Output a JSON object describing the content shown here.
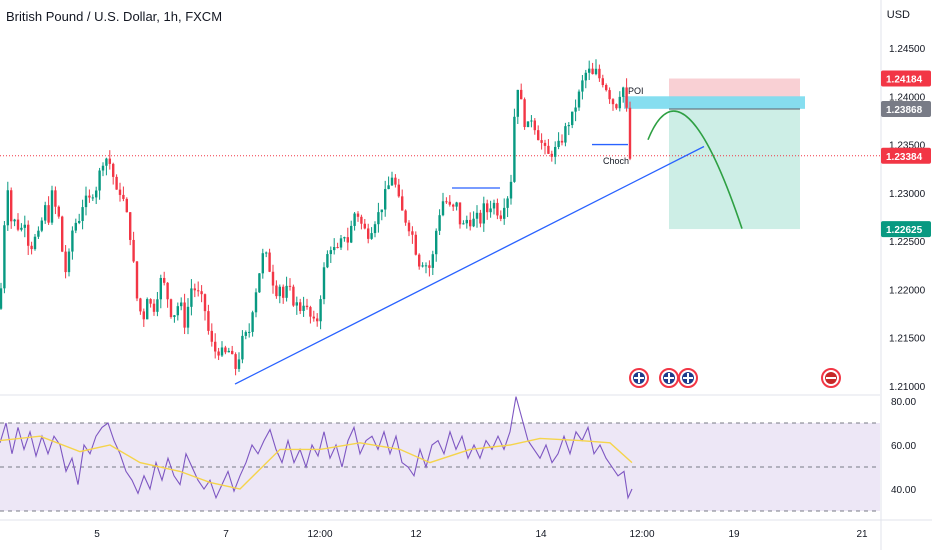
{
  "header": {
    "symbol_title": "British Pound / U.S. Dollar, 1h, FXCM",
    "currency": "USD"
  },
  "colors": {
    "up": "#089981",
    "down": "#f23645",
    "trendline": "#2962ff",
    "rsi_line": "#7e57c2",
    "rsi_ma": "#f5d44b",
    "rsi_band": "#ede7f6",
    "projection": "#2ea043",
    "poi": "#7fdcef",
    "stop_zone": "#f9d0d4",
    "target_zone": "#cdeee6"
  },
  "chart_data": [
    {
      "type": "candlestick",
      "title": "British Pound / U.S. Dollar, 1h, FXCM",
      "ylabel": "USD",
      "ylim": [
        1.2085,
        1.2505
      ],
      "y_ticks": [
        "1.24500",
        "1.24000",
        "1.23500",
        "1.23000",
        "1.22500",
        "1.22000",
        "1.21500",
        "1.21000"
      ],
      "x_ticks": [
        "5",
        "7",
        "12:00",
        "12",
        "14",
        "12:00",
        "19",
        "21"
      ],
      "price_labels": [
        {
          "label": "1.24184",
          "value": 1.24184,
          "color": "#f23645"
        },
        {
          "label": "1.23868",
          "value": 1.23868,
          "color": "#787b86"
        },
        {
          "label": "1.23384",
          "value": 1.23384,
          "color": "#f23645"
        },
        {
          "label": "1.22625",
          "value": 1.22625,
          "color": "#089981"
        }
      ],
      "current_price": 1.23384,
      "close_path": [
        [
          0,
          1.218
        ],
        [
          4,
          1.2265
        ],
        [
          8,
          1.231
        ],
        [
          12,
          1.2262
        ],
        [
          16,
          1.2275
        ],
        [
          20,
          1.2255
        ],
        [
          24,
          1.2278
        ],
        [
          28,
          1.225
        ],
        [
          32,
          1.2245
        ],
        [
          36,
          1.2255
        ],
        [
          40,
          1.2255
        ],
        [
          44,
          1.229
        ],
        [
          48,
          1.227
        ],
        [
          52,
          1.2298
        ],
        [
          56,
          1.2282
        ],
        [
          60,
          1.227
        ],
        [
          64,
          1.2215
        ],
        [
          68,
          1.2225
        ],
        [
          72,
          1.226
        ],
        [
          76,
          1.227
        ],
        [
          80,
          1.2275
        ],
        [
          84,
          1.2295
        ],
        [
          88,
          1.2288
        ],
        [
          92,
          1.23
        ],
        [
          96,
          1.2305
        ],
        [
          100,
          1.2322
        ],
        [
          104,
          1.2338
        ],
        [
          108,
          1.2335
        ],
        [
          112,
          1.2325
        ],
        [
          116,
          1.2298
        ],
        [
          120,
          1.2302
        ],
        [
          124,
          1.229
        ],
        [
          128,
          1.227
        ],
        [
          132,
          1.2245
        ],
        [
          136,
          1.2195
        ],
        [
          140,
          1.2178
        ],
        [
          144,
          1.2172
        ],
        [
          148,
          1.22
        ],
        [
          152,
          1.2175
        ],
        [
          156,
          1.2188
        ],
        [
          160,
          1.221
        ],
        [
          164,
          1.2205
        ],
        [
          168,
          1.219
        ],
        [
          172,
          1.2172
        ],
        [
          176,
          1.2178
        ],
        [
          180,
          1.219
        ],
        [
          184,
          1.2162
        ],
        [
          188,
          1.2182
        ],
        [
          192,
          1.2205
        ],
        [
          196,
          1.2198
        ],
        [
          200,
          1.2192
        ],
        [
          204,
          1.2185
        ],
        [
          208,
          1.2158
        ],
        [
          212,
          1.2142
        ],
        [
          216,
          1.2135
        ],
        [
          220,
          1.2138
        ],
        [
          224,
          1.213
        ],
        [
          228,
          1.2138
        ],
        [
          232,
          1.2128
        ],
        [
          236,
          1.2118
        ],
        [
          240,
          1.2135
        ],
        [
          244,
          1.2155
        ],
        [
          248,
          1.2148
        ],
        [
          252,
          1.2178
        ],
        [
          256,
          1.22
        ],
        [
          260,
          1.2222
        ],
        [
          264,
          1.224
        ],
        [
          268,
          1.2228
        ],
        [
          272,
          1.2212
        ],
        [
          276,
          1.2198
        ],
        [
          280,
          1.2205
        ],
        [
          284,
          1.2188
        ],
        [
          288,
          1.2205
        ],
        [
          292,
          1.219
        ],
        [
          296,
          1.2185
        ],
        [
          300,
          1.218
        ],
        [
          304,
          1.2188
        ],
        [
          308,
          1.2175
        ],
        [
          312,
          1.2168
        ],
        [
          316,
          1.216
        ],
        [
          320,
          1.219
        ],
        [
          324,
          1.222
        ],
        [
          328,
          1.2238
        ],
        [
          332,
          1.2248
        ],
        [
          336,
          1.2235
        ],
        [
          340,
          1.2245
        ],
        [
          344,
          1.2258
        ],
        [
          348,
          1.225
        ],
        [
          352,
          1.2268
        ],
        [
          356,
          1.2285
        ],
        [
          360,
          1.227
        ],
        [
          364,
          1.2262
        ],
        [
          368,
          1.2258
        ],
        [
          372,
          1.2265
        ],
        [
          376,
          1.2275
        ],
        [
          380,
          1.228
        ],
        [
          384,
          1.2295
        ],
        [
          388,
          1.2305
        ],
        [
          392,
          1.2318
        ],
        [
          396,
          1.2305
        ],
        [
          400,
          1.2285
        ],
        [
          404,
          1.2275
        ],
        [
          408,
          1.2268
        ],
        [
          412,
          1.2258
        ],
        [
          416,
          1.224
        ],
        [
          420,
          1.2225
        ],
        [
          424,
          1.2232
        ],
        [
          428,
          1.222
        ],
        [
          432,
          1.2228
        ],
        [
          436,
          1.226
        ],
        [
          440,
          1.2282
        ],
        [
          444,
          1.2295
        ],
        [
          448,
          1.2288
        ],
        [
          452,
          1.228
        ],
        [
          456,
          1.229
        ],
        [
          460,
          1.227
        ],
        [
          464,
          1.2265
        ],
        [
          468,
          1.2275
        ],
        [
          472,
          1.2268
        ],
        [
          476,
          1.2275
        ],
        [
          480,
          1.227
        ],
        [
          484,
          1.2285
        ],
        [
          488,
          1.228
        ],
        [
          492,
          1.2292
        ],
        [
          496,
          1.2285
        ],
        [
          500,
          1.2275
        ],
        [
          504,
          1.229
        ],
        [
          508,
          1.2298
        ],
        [
          512,
          1.232
        ],
        [
          516,
          1.242
        ],
        [
          520,
          1.24
        ],
        [
          524,
          1.2375
        ],
        [
          528,
          1.2368
        ],
        [
          532,
          1.238
        ],
        [
          536,
          1.2365
        ],
        [
          540,
          1.2355
        ],
        [
          544,
          1.2345
        ],
        [
          548,
          1.2338
        ],
        [
          552,
          1.2342
        ],
        [
          556,
          1.2345
        ],
        [
          560,
          1.235
        ],
        [
          564,
          1.2362
        ],
        [
          568,
          1.2372
        ],
        [
          572,
          1.2378
        ],
        [
          576,
          1.2392
        ],
        [
          580,
          1.2405
        ],
        [
          584,
          1.242
        ],
        [
          588,
          1.2428
        ],
        [
          592,
          1.242
        ],
        [
          596,
          1.2425
        ],
        [
          600,
          1.2418
        ],
        [
          604,
          1.2415
        ],
        [
          608,
          1.2405
        ],
        [
          612,
          1.2395
        ],
        [
          616,
          1.239
        ],
        [
          620,
          1.2405
        ],
        [
          624,
          1.241
        ],
        [
          628,
          1.237
        ],
        [
          631,
          1.2318
        ],
        [
          634,
          1.2338
        ]
      ],
      "annotations": [
        {
          "text": "POI"
        },
        {
          "text": "Choch"
        }
      ],
      "drawings": {
        "trendline": {
          "x1": 235,
          "y1": 1.2102,
          "x2": 704,
          "y2": 1.2348
        },
        "structure_line_1": {
          "x1": 452,
          "x2": 500,
          "y": 1.2305
        },
        "structure_line_2": {
          "x1": 592,
          "x2": 628,
          "y": 1.235
        },
        "poi_zone": {
          "x1": 624,
          "x2": 805,
          "top": 1.24,
          "bottom": 1.2387
        },
        "stop_zone": {
          "x1": 669,
          "x2": 800,
          "top": 1.24184,
          "bottom": 1.23868
        },
        "target_zone": {
          "x1": 669,
          "x2": 800,
          "top": 1.23868,
          "bottom": 1.22625
        },
        "projection": [
          [
            648,
            1.2355
          ],
          [
            683,
            1.2395
          ],
          [
            742,
            1.2263
          ]
        ]
      },
      "event_icons": [
        639,
        669,
        688,
        831
      ]
    },
    {
      "type": "line",
      "title": "",
      "ylim": [
        28,
        85
      ],
      "y_ticks": [
        "80.00",
        "60.00",
        "40.00"
      ],
      "levels": [
        70,
        50,
        30
      ],
      "series": [
        {
          "role": "rsi",
          "values": [
            [
              0,
              61
            ],
            [
              6,
              70
            ],
            [
              12,
              56
            ],
            [
              18,
              68
            ],
            [
              24,
              58
            ],
            [
              30,
              66
            ],
            [
              36,
              55
            ],
            [
              42,
              64
            ],
            [
              48,
              56
            ],
            [
              54,
              64
            ],
            [
              60,
              60
            ],
            [
              66,
              48
            ],
            [
              72,
              54
            ],
            [
              78,
              42
            ],
            [
              84,
              60
            ],
            [
              90,
              56
            ],
            [
              96,
              64
            ],
            [
              102,
              68
            ],
            [
              108,
              70
            ],
            [
              114,
              62
            ],
            [
              120,
              56
            ],
            [
              126,
              48
            ],
            [
              132,
              44
            ],
            [
              138,
              38
            ],
            [
              144,
              46
            ],
            [
              150,
              40
            ],
            [
              156,
              52
            ],
            [
              162,
              44
            ],
            [
              168,
              54
            ],
            [
              174,
              46
            ],
            [
              180,
              42
            ],
            [
              186,
              56
            ],
            [
              192,
              50
            ],
            [
              198,
              44
            ],
            [
              204,
              40
            ],
            [
              210,
              44
            ],
            [
              216,
              36
            ],
            [
              222,
              42
            ],
            [
              228,
              48
            ],
            [
              234,
              39
            ],
            [
              240,
              46
            ],
            [
              246,
              52
            ],
            [
              252,
              60
            ],
            [
              258,
              56
            ],
            [
              264,
              62
            ],
            [
              270,
              67
            ],
            [
              276,
              58
            ],
            [
              282,
              52
            ],
            [
              288,
              62
            ],
            [
              294,
              52
            ],
            [
              300,
              58
            ],
            [
              306,
              50
            ],
            [
              312,
              60
            ],
            [
              318,
              55
            ],
            [
              324,
              66
            ],
            [
              330,
              54
            ],
            [
              336,
              60
            ],
            [
              342,
              50
            ],
            [
              348,
              62
            ],
            [
              354,
              68
            ],
            [
              360,
              56
            ],
            [
              366,
              62
            ],
            [
              372,
              64
            ],
            [
              378,
              58
            ],
            [
              384,
              66
            ],
            [
              390,
              56
            ],
            [
              396,
              64
            ],
            [
              402,
              52
            ],
            [
              408,
              50
            ],
            [
              414,
              46
            ],
            [
              420,
              58
            ],
            [
              426,
              50
            ],
            [
              432,
              60
            ],
            [
              438,
              62
            ],
            [
              444,
              56
            ],
            [
              450,
              66
            ],
            [
              456,
              58
            ],
            [
              462,
              64
            ],
            [
              468,
              54
            ],
            [
              474,
              60
            ],
            [
              480,
              54
            ],
            [
              486,
              62
            ],
            [
              492,
              58
            ],
            [
              498,
              64
            ],
            [
              504,
              58
            ],
            [
              510,
              66
            ],
            [
              516,
              82
            ],
            [
              522,
              72
            ],
            [
              528,
              62
            ],
            [
              534,
              58
            ],
            [
              540,
              54
            ],
            [
              546,
              60
            ],
            [
              552,
              52
            ],
            [
              558,
              56
            ],
            [
              564,
              64
            ],
            [
              570,
              56
            ],
            [
              576,
              66
            ],
            [
              582,
              62
            ],
            [
              588,
              68
            ],
            [
              594,
              56
            ],
            [
              600,
              60
            ],
            [
              606,
              54
            ],
            [
              612,
              50
            ],
            [
              618,
              46
            ],
            [
              624,
              48
            ],
            [
              628,
              36
            ],
            [
              632,
              40
            ]
          ]
        },
        {
          "role": "rsi_ma",
          "values": [
            [
              0,
              62
            ],
            [
              40,
              64
            ],
            [
              80,
              57
            ],
            [
              110,
              60
            ],
            [
              140,
              52
            ],
            [
              180,
              48
            ],
            [
              210,
              43
            ],
            [
              240,
              40
            ],
            [
              280,
              58
            ],
            [
              320,
              58
            ],
            [
              360,
              61
            ],
            [
              400,
              58
            ],
            [
              430,
              52
            ],
            [
              470,
              58
            ],
            [
              510,
              60
            ],
            [
              540,
              63
            ],
            [
              580,
              62
            ],
            [
              610,
              61
            ],
            [
              632,
              52
            ]
          ]
        }
      ],
      "x_ticks": [
        "5",
        "7",
        "12:00",
        "12",
        "14",
        "12:00",
        "19",
        "21"
      ]
    }
  ]
}
